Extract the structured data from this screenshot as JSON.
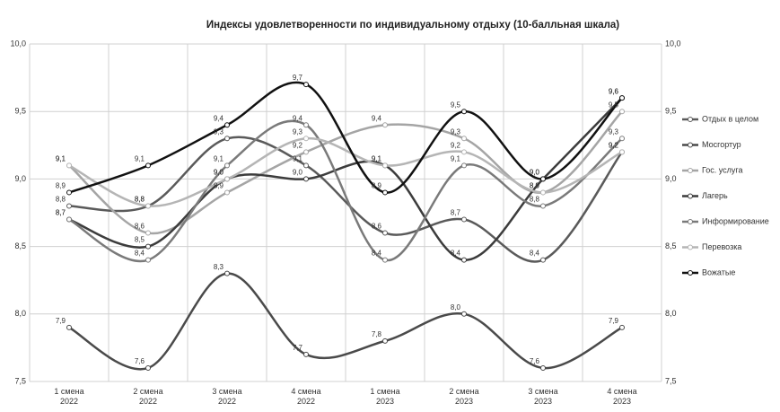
{
  "chart_data": {
    "type": "line",
    "title": "Индексы удовлетворенности по индивидуальному отдыху (10-балльная шкала)",
    "categories": [
      "1 смена\n2022",
      "2 смена\n2022",
      "3 смена\n2022",
      "4 смена\n2022",
      "1 смена\n2023",
      "2 смена\n2023",
      "3 смена\n2023",
      "4 смена\n2023"
    ],
    "ylim": [
      7.5,
      10.0
    ],
    "yticks": [
      {
        "value": 7.5,
        "label": "7,5"
      },
      {
        "value": 8.0,
        "label": "8,0"
      },
      {
        "value": 8.5,
        "label": "8,5"
      },
      {
        "value": 9.0,
        "label": "9,0"
      },
      {
        "value": 9.5,
        "label": "9,5"
      },
      {
        "value": 10.0,
        "label": "10,0"
      }
    ],
    "y2lim": [
      7.5,
      10.0
    ],
    "y2ticks": [
      {
        "value": 7.5,
        "label": "7,5"
      },
      {
        "value": 8.0,
        "label": "8,0"
      },
      {
        "value": 8.5,
        "label": "8,5"
      },
      {
        "value": 9.0,
        "label": "9,0"
      },
      {
        "value": 9.5,
        "label": "9,5"
      },
      {
        "value": 10.0,
        "label": "10,0"
      }
    ],
    "grid": true,
    "legend": "right",
    "series": [
      {
        "name": "Отдых в целом",
        "color": "#5a5a5a",
        "values": [
          8.8,
          8.8,
          9.3,
          9.1,
          8.6,
          8.7,
          8.4,
          9.2
        ],
        "value_labels": [
          "8,8",
          "8,8",
          "9,3",
          "9,1",
          "8,6",
          "8,7",
          "8,4",
          "9,2"
        ]
      },
      {
        "name": "Мосгортур",
        "color": "#4a4a4a",
        "values": [
          7.9,
          7.6,
          8.3,
          7.7,
          7.8,
          8.0,
          7.6,
          7.9
        ],
        "value_labels": [
          "7,9",
          "7,6",
          "8,3",
          "7,7",
          "7,8",
          "8,0",
          "7,6",
          "7,9"
        ]
      },
      {
        "name": "Гос. услуга",
        "color": "#a5a5a5",
        "values": [
          9.1,
          8.6,
          8.9,
          9.2,
          9.4,
          9.3,
          8.9,
          9.5
        ],
        "value_labels": [
          "9,1",
          "8,6",
          "8,9",
          "9,2",
          "9,4",
          "9,3",
          "8,9",
          "9,5"
        ]
      },
      {
        "name": "Лагерь",
        "color": "#3c3c3c",
        "values": [
          8.7,
          8.5,
          9.0,
          9.0,
          9.1,
          8.4,
          9.0,
          9.6
        ],
        "value_labels": [
          "8,7",
          "8,5",
          "9,0",
          "9,0",
          "9,1",
          "8,4",
          "9,0",
          "9,6"
        ]
      },
      {
        "name": "Информирование",
        "color": "#7a7a7a",
        "values": [
          8.7,
          8.4,
          9.1,
          9.4,
          8.4,
          9.1,
          8.8,
          9.3
        ],
        "value_labels": [
          "8,7",
          "8,4",
          "9,1",
          "9,4",
          "8,4",
          "9,1",
          "8,8",
          "9,3"
        ]
      },
      {
        "name": "Перевозка",
        "color": "#b5b5b5",
        "values": [
          9.1,
          8.8,
          9.0,
          9.3,
          9.1,
          9.2,
          8.9,
          9.2
        ],
        "value_labels": [
          "9,1",
          "8,8",
          "9,0",
          "9,3",
          "9,1",
          "9,2",
          "8,9",
          "9,2"
        ]
      },
      {
        "name": "Вожатые",
        "color": "#111111",
        "values": [
          8.9,
          9.1,
          9.4,
          9.7,
          8.9,
          9.5,
          9.0,
          9.6
        ],
        "value_labels": [
          "8,9",
          "9,1",
          "9,4",
          "9,7",
          "8,9",
          "9,5",
          "9,0",
          "9,6"
        ]
      }
    ]
  }
}
